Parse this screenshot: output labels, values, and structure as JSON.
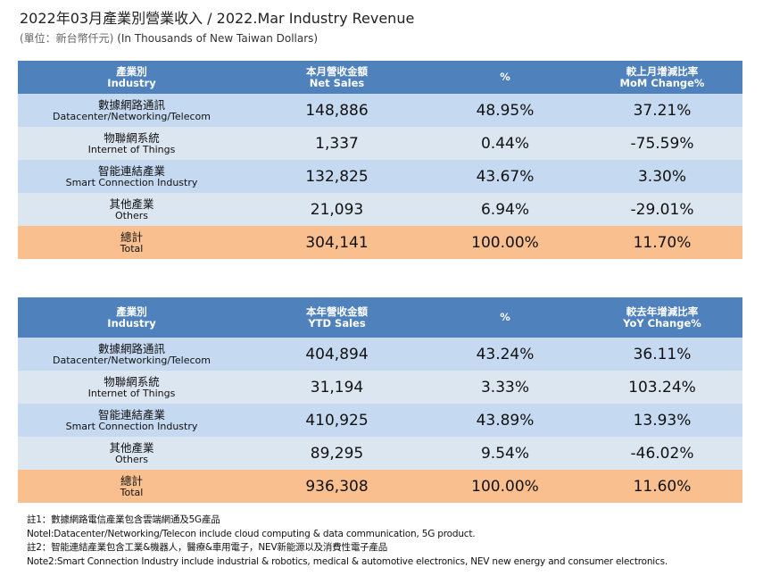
{
  "title": "2022年03月產業別營業收入 / 2022.Mar Industry Revenue",
  "unit_zh": "(單位：新台幣仟元)",
  "unit_en": "(In Thousands of New Taiwan Dollars)",
  "colors": {
    "header": "#4f81bd",
    "row_dark": "#c5d9f1",
    "row_light": "#dce6f1",
    "total": "#fabf8f"
  },
  "monthly": {
    "headers": [
      {
        "zh": "產業別",
        "en": "Industry"
      },
      {
        "zh": "本月營收金額",
        "en": "Net Sales"
      },
      {
        "zh": "%",
        "en": ""
      },
      {
        "zh": "較上月增減比率",
        "en": "MoM Change%"
      }
    ],
    "rows": [
      {
        "zh": "數據網路通訊",
        "en": "Datacenter/Networking/Telecom",
        "sales": "148,886",
        "pct": "48.95%",
        "change": "37.21%"
      },
      {
        "zh": "物聯網系統",
        "en": "Internet of Things",
        "sales": "1,337",
        "pct": "0.44%",
        "change": "-75.59%"
      },
      {
        "zh": "智能連結產業",
        "en": "Smart Connection Industry",
        "sales": "132,825",
        "pct": "43.67%",
        "change": "3.30%"
      },
      {
        "zh": "其他產業",
        "en": "Others",
        "sales": "21,093",
        "pct": "6.94%",
        "change": "-29.01%"
      },
      {
        "zh": "總計",
        "en": "Total",
        "sales": "304,141",
        "pct": "100.00%",
        "change": "11.70%"
      }
    ]
  },
  "ytd": {
    "headers": [
      {
        "zh": "產業別",
        "en": "Industry"
      },
      {
        "zh": "本年營收金額",
        "en": "YTD Sales"
      },
      {
        "zh": "%",
        "en": ""
      },
      {
        "zh": "較去年增減比率",
        "en": "YoY Change%"
      }
    ],
    "rows": [
      {
        "zh": "數據網路通訊",
        "en": "Datacenter/Networking/Telecom",
        "sales": "404,894",
        "pct": "43.24%",
        "change": "36.11%"
      },
      {
        "zh": "物聯網系統",
        "en": "Internet of Things",
        "sales": "31,194",
        "pct": "3.33%",
        "change": "103.24%"
      },
      {
        "zh": "智能連結產業",
        "en": "Smart Connection Industry",
        "sales": "410,925",
        "pct": "43.89%",
        "change": "13.93%"
      },
      {
        "zh": "其他產業",
        "en": "Others",
        "sales": "89,295",
        "pct": "9.54%",
        "change": "-46.02%"
      },
      {
        "zh": "總計",
        "en": "Total",
        "sales": "936,308",
        "pct": "100.00%",
        "change": "11.60%"
      }
    ]
  },
  "notes": [
    "註1：數據網路電信產業包含雲端網通及5G產品",
    "NoteI:Datacenter/Networking/Telecon include cloud computing & data communication, 5G product.",
    "註2：智能連結產業包含工業&機器人，醫療&車用電子，NEV新能源以及消費性電子產品",
    "Note2:Smart Connection Industry include industrial & robotics, medical & automotive electronics, NEV new energy and consumer electronics."
  ]
}
